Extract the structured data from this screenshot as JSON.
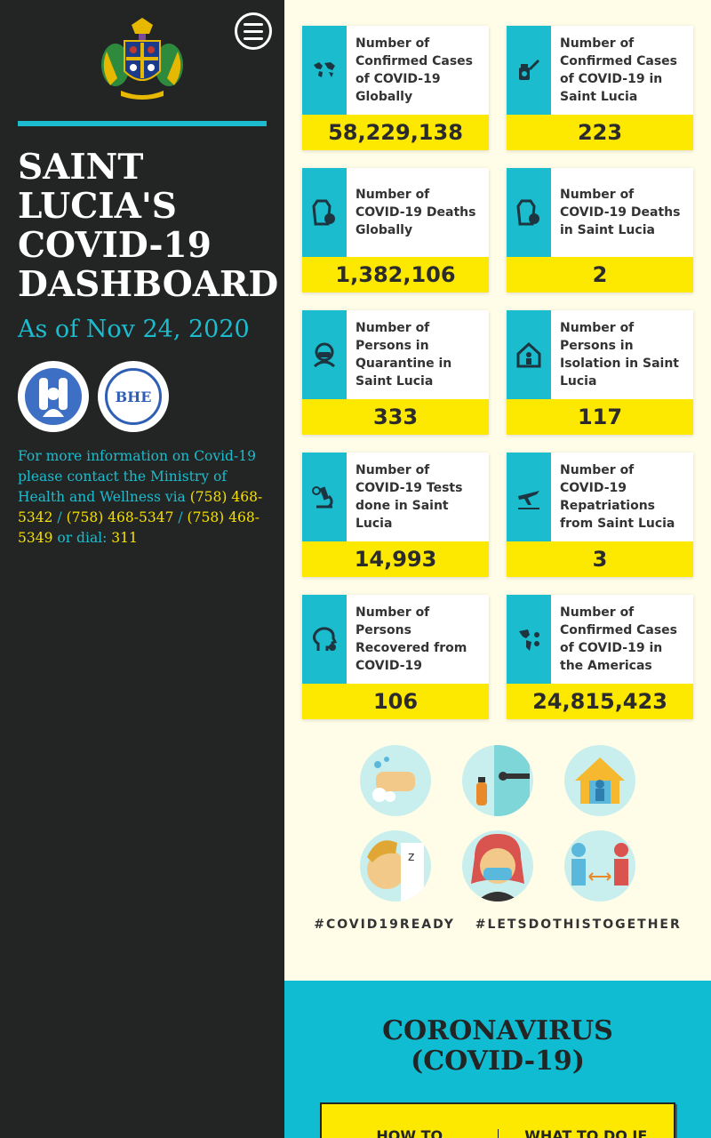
{
  "sidebar": {
    "title": "SAINT LUCIA'S COVID-19 DASHBOARD",
    "as_of": "As of Nov 24, 2020",
    "logos": {
      "moh": "MINISTRY OF HEALTH",
      "bhe": "BHE"
    },
    "info_text": "For more information on Covid-19 please contact the Ministry of Health and Wellness via",
    "phone1": "(758) 468-5342",
    "sep1": "/",
    "phone2": "(758) 468-5347",
    "sep2": "/",
    "phone3": "(758) 468-5349",
    "dial_text": "or dial:",
    "dial_number": "311"
  },
  "cards": [
    {
      "label": "Number of Confirmed Cases of COVID-19 Globally",
      "value": "58,229,138",
      "icon": "globe-icon"
    },
    {
      "label": "Number of Confirmed Cases of COVID-19 in Saint Lucia",
      "value": "223",
      "icon": "syringe-icon"
    },
    {
      "label": "Number of COVID-19 Deaths Globally",
      "value": "1,382,106",
      "icon": "coffin-icon"
    },
    {
      "label": "Number of COVID-19 Deaths in Saint Lucia",
      "value": "2",
      "icon": "coffin-icon"
    },
    {
      "label": "Number of Persons in Quarantine in Saint Lucia",
      "value": "333",
      "icon": "masked-person-icon"
    },
    {
      "label": "Number of Persons in Isolation in Saint Lucia",
      "value": "117",
      "icon": "isolation-house-icon"
    },
    {
      "label": "Number of COVID-19 Tests done in Saint Lucia",
      "value": "14,993",
      "icon": "microscope-icon"
    },
    {
      "label": "Number of COVID-19 Repatriations from Saint Lucia",
      "value": "3",
      "icon": "airplane-icon"
    },
    {
      "label": "Number of Persons Recovered from COVID-19",
      "value": "106",
      "icon": "recovered-head-icon"
    },
    {
      "label": "Number of Confirmed Cases of COVID-19 in the Americas",
      "value": "24,815,423",
      "icon": "americas-map-icon"
    }
  ],
  "tips": [
    "hand-washing-icon",
    "door-disinfect-icon",
    "stay-home-icon",
    "sleep-icon",
    "face-mask-icon",
    "social-distance-icon"
  ],
  "hashtags": [
    "#COVID19READY",
    "#LETSDOTHISTOGETHER"
  ],
  "bottom": {
    "title": "CORONAVIRUS (COVID-19)",
    "tab1": "HOW TO",
    "tab2": "WHAT TO DO IF"
  },
  "colors": {
    "teal": "#1bbcce",
    "yellow": "#fde800",
    "dark": "#232524",
    "cream": "#fffde8"
  }
}
